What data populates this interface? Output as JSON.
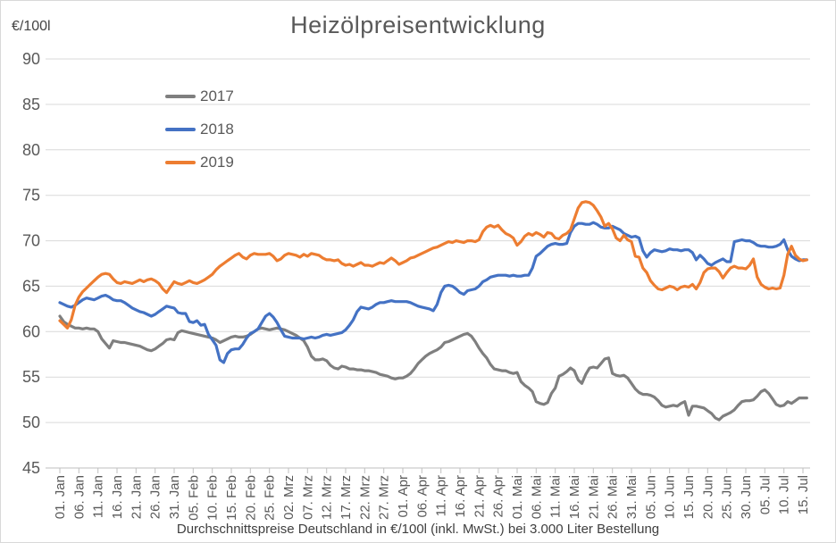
{
  "chart_data": {
    "type": "line",
    "title": "Heizölpreisentwicklung",
    "y_unit_label": "€/100l",
    "caption": "Durchschnittspreise Deutschland in €/100l (inkl. MwSt.) bei 3.000 Liter Bestellung",
    "ylim": [
      45,
      90
    ],
    "y_ticks": [
      45,
      50,
      55,
      60,
      65,
      70,
      75,
      80,
      85,
      90
    ],
    "grid": "horizontal",
    "legend_position": "upper-left-vertical",
    "x_tick_interval_days": 5,
    "x_tick_labels": [
      "01. Jan",
      "06. Jan",
      "11. Jan",
      "16. Jan",
      "21. Jan",
      "26. Jan",
      "31. Jan",
      "05. Feb",
      "10. Feb",
      "15. Feb",
      "20. Feb",
      "25. Feb",
      "02. Mrz",
      "07. Mrz",
      "12. Mrz",
      "17. Mrz",
      "22. Mrz",
      "27. Mrz",
      "01. Apr",
      "06. Apr",
      "11. Apr",
      "16. Apr",
      "21. Apr",
      "26. Apr",
      "01. Mai",
      "06. Mai",
      "11. Mai",
      "16. Mai",
      "21. Mai",
      "26. Mai",
      "31. Mai",
      "05. Jun",
      "10. Jun",
      "15. Jun",
      "20. Jun",
      "25. Jun",
      "30. Jun",
      "05. Jul",
      "10. Jul",
      "15. Jul"
    ],
    "axis_colors": {
      "grid": "#d9d9d9",
      "axis_line": "#bfbfbf",
      "tick_text": "#595959"
    },
    "series": [
      {
        "name": "2017",
        "color": "#7f7f7f",
        "values": [
          61.7,
          61.1,
          60.8,
          60.6,
          60.4,
          60.4,
          60.3,
          60.4,
          60.3,
          60.3,
          60.0,
          59.2,
          58.7,
          58.2,
          59.0,
          58.9,
          58.8,
          58.8,
          58.7,
          58.6,
          58.5,
          58.4,
          58.2,
          58.0,
          57.9,
          58.1,
          58.4,
          58.7,
          59.1,
          59.2,
          59.1,
          59.9,
          60.1,
          60.0,
          59.9,
          59.8,
          59.7,
          59.6,
          59.5,
          59.4,
          59.3,
          59.1,
          58.8,
          59.0,
          59.2,
          59.4,
          59.5,
          59.4,
          59.4,
          59.5,
          59.7,
          60.0,
          60.3,
          60.4,
          60.3,
          60.2,
          60.3,
          60.4,
          60.3,
          60.2,
          60.0,
          59.8,
          59.6,
          59.3,
          59.0,
          58.3,
          57.3,
          56.9,
          56.9,
          57.0,
          56.8,
          56.3,
          56.0,
          55.9,
          56.2,
          56.1,
          55.9,
          55.9,
          55.8,
          55.8,
          55.7,
          55.7,
          55.6,
          55.5,
          55.3,
          55.2,
          55.1,
          54.9,
          54.8,
          54.9,
          54.9,
          55.1,
          55.4,
          55.9,
          56.5,
          56.9,
          57.3,
          57.6,
          57.8,
          58.0,
          58.3,
          58.8,
          58.9,
          59.1,
          59.3,
          59.5,
          59.7,
          59.8,
          59.5,
          58.9,
          58.2,
          57.6,
          57.1,
          56.4,
          55.9,
          55.8,
          55.7,
          55.7,
          55.5,
          55.4,
          55.5,
          54.5,
          54.1,
          53.8,
          53.4,
          52.3,
          52.1,
          52.0,
          52.2,
          53.2,
          53.8,
          55.1,
          55.3,
          55.6,
          56.0,
          55.7,
          54.7,
          54.3,
          55.3,
          56.0,
          56.1,
          56.0,
          56.5,
          57.0,
          57.1,
          55.4,
          55.2,
          55.1,
          55.2,
          54.9,
          54.3,
          53.7,
          53.3,
          53.1,
          53.1,
          53.0,
          52.8,
          52.4,
          51.9,
          51.7,
          51.8,
          51.9,
          51.8,
          52.1,
          52.3,
          50.8,
          51.8,
          51.8,
          51.7,
          51.6,
          51.3,
          51.0,
          50.5,
          50.3,
          50.7,
          50.9,
          51.1,
          51.4,
          51.9,
          52.3,
          52.4,
          52.4,
          52.5,
          52.9,
          53.4,
          53.6,
          53.2,
          52.6,
          52.0,
          51.8,
          51.9,
          52.3,
          52.1,
          52.4,
          52.7,
          52.7,
          52.7
        ]
      },
      {
        "name": "2018",
        "color": "#4472c4",
        "values": [
          63.2,
          63.0,
          62.8,
          62.7,
          62.9,
          63.2,
          63.5,
          63.7,
          63.6,
          63.5,
          63.7,
          63.9,
          64.0,
          63.8,
          63.5,
          63.4,
          63.4,
          63.2,
          62.9,
          62.6,
          62.4,
          62.2,
          62.1,
          61.9,
          61.7,
          61.9,
          62.2,
          62.5,
          62.8,
          62.7,
          62.6,
          62.1,
          62.0,
          62.0,
          61.1,
          61.0,
          61.2,
          60.7,
          60.8,
          59.7,
          59.1,
          58.5,
          56.9,
          56.6,
          57.6,
          58.0,
          58.1,
          58.1,
          58.6,
          59.3,
          59.8,
          60.0,
          60.3,
          61.0,
          61.7,
          62.0,
          61.6,
          61.0,
          60.2,
          59.5,
          59.4,
          59.3,
          59.3,
          59.3,
          59.2,
          59.3,
          59.4,
          59.3,
          59.4,
          59.6,
          59.7,
          59.6,
          59.7,
          59.8,
          59.9,
          60.2,
          60.7,
          61.3,
          62.2,
          62.7,
          62.6,
          62.5,
          62.7,
          63.0,
          63.2,
          63.2,
          63.3,
          63.4,
          63.3,
          63.3,
          63.3,
          63.3,
          63.2,
          63.0,
          62.8,
          62.7,
          62.6,
          62.5,
          62.3,
          63.0,
          64.3,
          65.0,
          65.1,
          65.0,
          64.7,
          64.3,
          64.1,
          64.5,
          64.6,
          64.7,
          65.0,
          65.5,
          65.7,
          66.0,
          66.1,
          66.2,
          66.2,
          66.2,
          66.1,
          66.2,
          66.1,
          66.1,
          66.2,
          66.2,
          67.0,
          68.3,
          68.6,
          69.0,
          69.4,
          69.6,
          69.7,
          69.6,
          69.6,
          69.7,
          70.9,
          71.6,
          71.9,
          71.9,
          71.8,
          71.8,
          72.0,
          71.8,
          71.5,
          71.4,
          71.4,
          71.6,
          71.4,
          71.2,
          70.8,
          70.6,
          70.4,
          70.5,
          70.3,
          68.9,
          68.2,
          68.7,
          69.0,
          68.9,
          68.8,
          68.9,
          69.1,
          69.0,
          69.0,
          68.9,
          69.0,
          69.0,
          68.7,
          67.9,
          68.4,
          68.0,
          67.5,
          67.3,
          67.6,
          67.8,
          68.0,
          67.7,
          67.7,
          69.9,
          70.0,
          70.1,
          70.0,
          70.0,
          69.8,
          69.5,
          69.4,
          69.4,
          69.3,
          69.3,
          69.4,
          69.6,
          70.1,
          69.0,
          68.3,
          68.0,
          67.8,
          67.9,
          67.9
        ]
      },
      {
        "name": "2019",
        "color": "#ed7d31",
        "values": [
          61.2,
          60.8,
          60.4,
          61.3,
          62.9,
          63.8,
          64.4,
          64.8,
          65.2,
          65.6,
          66.0,
          66.3,
          66.4,
          66.3,
          65.8,
          65.4,
          65.3,
          65.5,
          65.4,
          65.3,
          65.5,
          65.7,
          65.5,
          65.7,
          65.8,
          65.6,
          65.3,
          64.7,
          64.3,
          64.9,
          65.5,
          65.3,
          65.2,
          65.4,
          65.6,
          65.4,
          65.3,
          65.5,
          65.7,
          66.0,
          66.3,
          66.8,
          67.2,
          67.5,
          67.8,
          68.1,
          68.4,
          68.6,
          68.2,
          68.0,
          68.4,
          68.6,
          68.5,
          68.5,
          68.5,
          68.6,
          68.3,
          67.8,
          68.0,
          68.4,
          68.6,
          68.5,
          68.4,
          68.2,
          68.5,
          68.3,
          68.6,
          68.5,
          68.4,
          68.1,
          67.9,
          67.9,
          67.8,
          67.9,
          67.5,
          67.3,
          67.4,
          67.2,
          67.4,
          67.6,
          67.3,
          67.3,
          67.2,
          67.4,
          67.6,
          67.5,
          67.8,
          68.1,
          67.8,
          67.4,
          67.6,
          67.8,
          68.1,
          68.2,
          68.4,
          68.6,
          68.8,
          69.0,
          69.2,
          69.3,
          69.5,
          69.7,
          69.9,
          69.8,
          70.0,
          69.9,
          69.8,
          70.0,
          70.0,
          69.9,
          70.1,
          71.0,
          71.5,
          71.7,
          71.5,
          71.7,
          71.2,
          70.8,
          70.6,
          70.3,
          69.5,
          69.9,
          70.5,
          70.8,
          70.6,
          70.9,
          70.7,
          70.4,
          70.9,
          70.8,
          70.3,
          70.2,
          70.6,
          70.8,
          71.2,
          72.4,
          73.6,
          74.2,
          74.3,
          74.2,
          73.9,
          73.3,
          72.6,
          71.6,
          71.9,
          71.3,
          70.3,
          70.0,
          70.6,
          70.1,
          69.9,
          68.3,
          68.2,
          67.0,
          66.5,
          65.6,
          65.1,
          64.7,
          64.6,
          64.8,
          65.0,
          64.9,
          64.6,
          64.9,
          65.0,
          64.9,
          65.2,
          64.7,
          65.4,
          66.5,
          66.9,
          67.0,
          67.0,
          66.6,
          65.9,
          66.5,
          67.0,
          67.2,
          67.0,
          67.0,
          66.9,
          67.3,
          68.0,
          66.0,
          65.2,
          64.9,
          64.7,
          64.8,
          64.7,
          64.8,
          66.2,
          68.5,
          69.4,
          68.4,
          68.0,
          67.8,
          67.9
        ]
      }
    ]
  }
}
